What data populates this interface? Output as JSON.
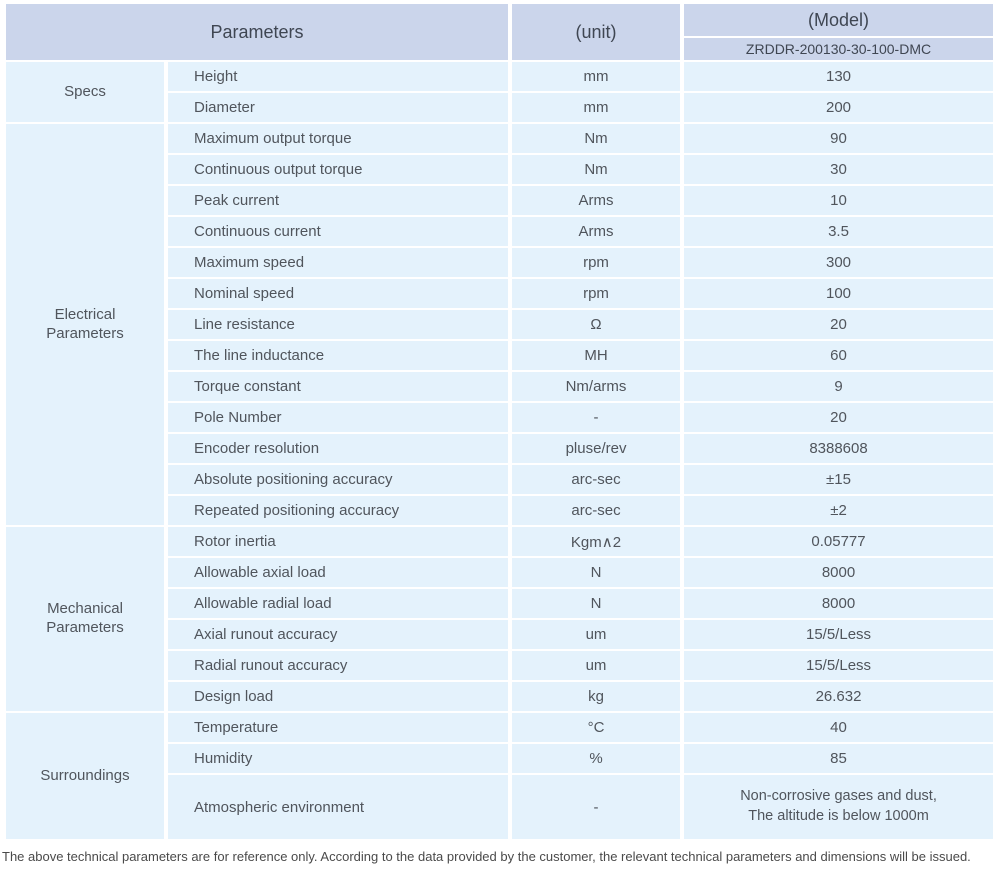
{
  "header": {
    "parameters_label": "Parameters",
    "unit_label": "(unit)",
    "model_label": "(Model)",
    "model_value": "ZRDDR-200130-30-100-DMC"
  },
  "sections": [
    {
      "group": "Specs",
      "rows": [
        {
          "name": "Height",
          "unit": "mm",
          "value": "130"
        },
        {
          "name": "Diameter",
          "unit": "mm",
          "value": "200"
        }
      ]
    },
    {
      "group": "Electrical Parameters",
      "rows": [
        {
          "name": "Maximum output torque",
          "unit": "Nm",
          "value": "90"
        },
        {
          "name": "Continuous output torque",
          "unit": "Nm",
          "value": "30"
        },
        {
          "name": "Peak current",
          "unit": "Arms",
          "value": "10"
        },
        {
          "name": "Continuous current",
          "unit": "Arms",
          "value": "3.5"
        },
        {
          "name": "Maximum speed",
          "unit": "rpm",
          "value": "300"
        },
        {
          "name": "Nominal speed",
          "unit": "rpm",
          "value": "100"
        },
        {
          "name": "Line resistance",
          "unit": "Ω",
          "value": "20"
        },
        {
          "name": "The line inductance",
          "unit": "MH",
          "value": "60"
        },
        {
          "name": "Torque constant",
          "unit": "Nm/arms",
          "value": "9"
        },
        {
          "name": "Pole Number",
          "unit": "-",
          "value": "20"
        },
        {
          "name": "Encoder resolution",
          "unit": "pluse/rev",
          "value": "8388608"
        },
        {
          "name": "Absolute positioning accuracy",
          "unit": "arc-sec",
          "value": "±15"
        },
        {
          "name": "Repeated positioning accuracy",
          "unit": "arc-sec",
          "value": "±2"
        }
      ]
    },
    {
      "group": "Mechanical Parameters",
      "rows": [
        {
          "name": "Rotor inertia",
          "unit": "Kgm∧2",
          "value": "0.05777"
        },
        {
          "name": "Allowable axial load",
          "unit": "N",
          "value": "8000"
        },
        {
          "name": "Allowable radial load",
          "unit": "N",
          "value": "8000"
        },
        {
          "name": "Axial runout accuracy",
          "unit": "um",
          "value": "15/5/Less"
        },
        {
          "name": "Radial runout accuracy",
          "unit": "um",
          "value": "15/5/Less"
        },
        {
          "name": "Design load",
          "unit": "kg",
          "value": "26.632"
        }
      ]
    },
    {
      "group": "Surroundings",
      "rows": [
        {
          "name": "Temperature",
          "unit": "°C",
          "value": "40"
        },
        {
          "name": "Humidity",
          "unit": "%",
          "value": "85"
        },
        {
          "name": "Atmospheric environment",
          "unit": "-",
          "value": "Non-corrosive gases and dust,\nThe altitude is below 1000m"
        }
      ]
    }
  ],
  "footer": {
    "note": "The above technical parameters are for reference only. According to the data provided by the customer, the relevant technical parameters and dimensions will be issued."
  },
  "colors": {
    "header_bg": "#cbd5eb",
    "row_bg": "#e4f2fc",
    "header_text": "#3f4652",
    "body_text": "#50555c",
    "note_text": "#4a4a4a",
    "page_bg": "#ffffff"
  }
}
